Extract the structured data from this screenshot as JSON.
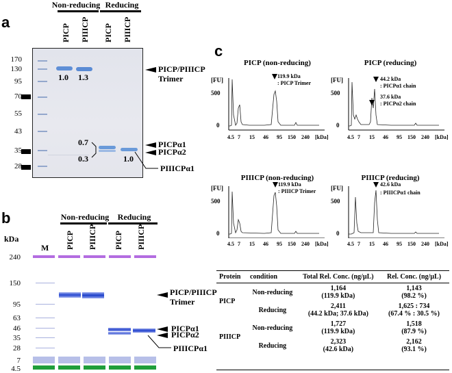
{
  "panel_a": {
    "label": "a",
    "group_nonreducing": "Non-reducing",
    "group_reducing": "Reducing",
    "lanes": [
      "PICP",
      "PIIICP",
      "PICP",
      "PIIICP"
    ],
    "markers": [
      "170",
      "130",
      "95",
      "70",
      "55",
      "43",
      "35",
      "28"
    ],
    "ratios": {
      "r1": "1.0",
      "r2": "1.3",
      "r3": "0.7",
      "r4": "0.3",
      "r5": "1.0"
    },
    "band_labels": {
      "trimer": "PICP/PIIICP\nTrimer",
      "a1": "PICPα1",
      "a2": "PICPα2",
      "p3": "PIIICPα1"
    }
  },
  "panel_b": {
    "label": "b",
    "kda": "kDa",
    "group_nonreducing": "Non-reducing",
    "group_reducing": "Reducing",
    "marker_lane": "M",
    "lanes": [
      "PICP",
      "PIIICP",
      "PICP",
      "PIIICP"
    ],
    "markers": [
      "240",
      "150",
      "95",
      "63",
      "46",
      "35",
      "28",
      "7",
      "4.5"
    ],
    "band_labels": {
      "trimer": "PICP/PIIICP\nTrimer",
      "a1": "PICPα1",
      "a2": "PICPα2",
      "p3": "PIIICPα1"
    }
  },
  "panel_c": {
    "label": "c",
    "fu": "[FU]",
    "unit": "[kDa]",
    "y_ticks": [
      "500",
      "0"
    ],
    "x_ticks": [
      "4.5",
      "7",
      "15",
      "46",
      "95",
      "150",
      "240"
    ],
    "charts": [
      {
        "title": "PICP (non-reducing)",
        "ann": [
          "119.9 kDa",
          ": PICP Trimer"
        ]
      },
      {
        "title": "PICP (reducing)",
        "ann": [
          "44.2 kDa",
          ": PICPα1 chain",
          "37.6 kDa",
          ": PICPα2 chain"
        ]
      },
      {
        "title": "PIIICP (non-reducing)",
        "ann": [
          "119.9 kDa",
          ": PIIICP Trimer"
        ]
      },
      {
        "title": "PIIICP (reducing)",
        "ann": [
          "42.6 kDa",
          ": PIIICPα1 chain"
        ]
      }
    ]
  },
  "table": {
    "headers": [
      "Protein",
      "condition",
      "Total Rel. Conc. (ng/µL)",
      "Rel. Conc. (ng/µL)"
    ],
    "proteins": [
      "PICP",
      "PIIICP"
    ],
    "rows": [
      {
        "condition": "Non-reducing",
        "total1": "1,164",
        "total2": "(119.9 kDa)",
        "rel1": "1,143",
        "rel2": "(98.2 %)"
      },
      {
        "condition": "Reducing",
        "total1": "2,411",
        "total2": "(44.2 kDa; 37.6 kDa)",
        "rel1": "1,625 : 734",
        "rel2": "(67.4 % : 30.5 %)"
      },
      {
        "condition": "Non-reducing",
        "total1": "1,727",
        "total2": "(119.9 kDa)",
        "rel1": "1,518",
        "rel2": "(87.9 %)"
      },
      {
        "condition": "Reducing",
        "total1": "2,323",
        "total2": "(42.6 kDa)",
        "rel1": "2,162",
        "rel2": "(93.1 %)"
      }
    ]
  },
  "chart_data": [
    {
      "type": "line",
      "title": "PICP (non-reducing)",
      "xlabel": "[kDa]",
      "ylabel": "[FU]",
      "x_ticks": [
        "4.5",
        "7",
        "15",
        "46",
        "95",
        "150",
        "240"
      ],
      "y_ticks": [
        0,
        500
      ],
      "peaks": [
        {
          "x_kda": 119.9,
          "label": "PICP Trimer"
        }
      ]
    },
    {
      "type": "line",
      "title": "PICP (reducing)",
      "xlabel": "[kDa]",
      "ylabel": "[FU]",
      "x_ticks": [
        "4.5",
        "7",
        "15",
        "46",
        "95",
        "150",
        "240"
      ],
      "y_ticks": [
        0,
        500
      ],
      "peaks": [
        {
          "x_kda": 44.2,
          "label": "PICPα1 chain"
        },
        {
          "x_kda": 37.6,
          "label": "PICPα2 chain"
        }
      ]
    },
    {
      "type": "line",
      "title": "PIIICP (non-reducing)",
      "xlabel": "[kDa]",
      "ylabel": "[FU]",
      "x_ticks": [
        "4.5",
        "7",
        "15",
        "46",
        "95",
        "150",
        "240"
      ],
      "y_ticks": [
        0,
        500
      ],
      "peaks": [
        {
          "x_kda": 119.9,
          "label": "PIIICP Trimer"
        }
      ]
    },
    {
      "type": "line",
      "title": "PIIICP (reducing)",
      "xlabel": "[kDa]",
      "ylabel": "[FU]",
      "x_ticks": [
        "4.5",
        "7",
        "15",
        "46",
        "95",
        "150",
        "240"
      ],
      "y_ticks": [
        0,
        500
      ],
      "peaks": [
        {
          "x_kda": 42.6,
          "label": "PIIICPα1 chain"
        }
      ]
    }
  ]
}
